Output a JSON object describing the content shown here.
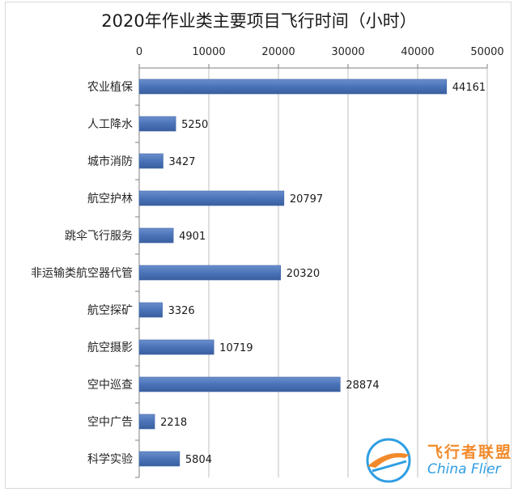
{
  "chart_data": {
    "type": "bar",
    "orientation": "horizontal",
    "title": "2020年作业类主要项目飞行时间（小时）",
    "categories": [
      "农业植保",
      "人工降水",
      "城市消防",
      "航空护林",
      "跳伞飞行服务",
      "非运输类航空器代管",
      "航空探矿",
      "航空摄影",
      "空中巡查",
      "空中广告",
      "科学实验"
    ],
    "values": [
      44161,
      5250,
      3427,
      20797,
      4901,
      20320,
      3326,
      10719,
      28874,
      2218,
      5804
    ],
    "xlim": [
      0,
      50000
    ],
    "x_ticks": [
      "0",
      "10000",
      "20000",
      "30000",
      "40000",
      "50000"
    ],
    "x_axis_position": "top",
    "grid": true,
    "legend": "none",
    "bar_color": "#4a73b8"
  },
  "watermark": {
    "text_cn": "飞行者联盟",
    "text_en": "China Flier"
  }
}
